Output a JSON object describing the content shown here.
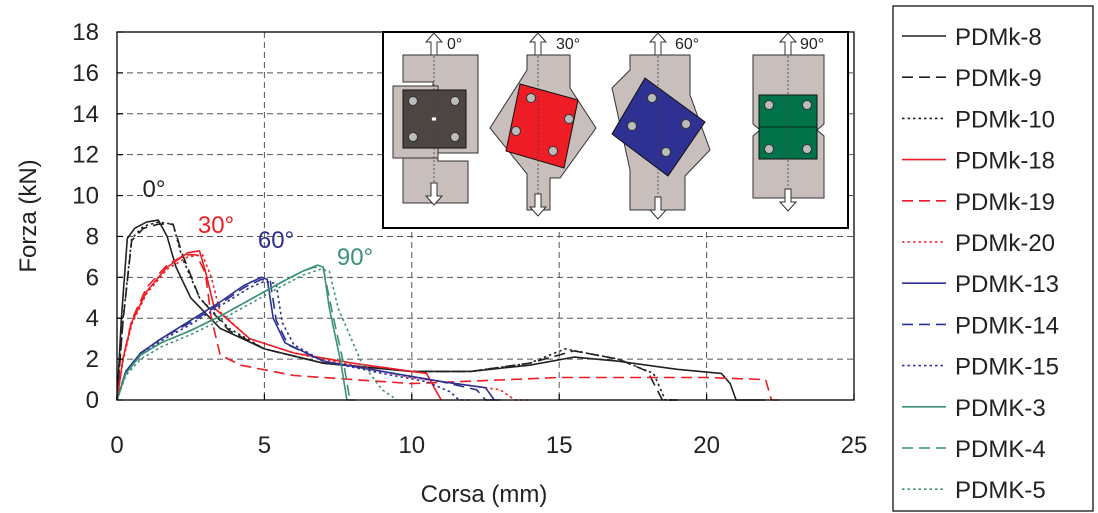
{
  "chart_data": {
    "type": "line",
    "xlabel": "Corsa (mm)",
    "ylabel": "Forza (kN)",
    "xlim": [
      0,
      25
    ],
    "ylim": [
      0,
      18
    ],
    "xticks": [
      0,
      5,
      10,
      15,
      20,
      25
    ],
    "yticks": [
      0,
      2,
      4,
      6,
      8,
      10,
      12,
      14,
      16,
      18
    ],
    "grid": true,
    "legend_position": "right-outside",
    "annotations": [
      {
        "text": "0°",
        "color": "#222222"
      },
      {
        "text": "30°",
        "color": "#ee1c24"
      },
      {
        "text": "60°",
        "color": "#2e3192"
      },
      {
        "text": "90°",
        "color": "#3a9177"
      }
    ],
    "inset": {
      "labels": [
        "0°",
        "30°",
        "60°",
        "90°"
      ],
      "colors": [
        "#4d4541",
        "#ee1c24",
        "#2e3192",
        "#00734a"
      ]
    },
    "series": [
      {
        "name": "PDMk-8",
        "color": "#222222",
        "dash": "solid",
        "x": [
          0,
          0.15,
          0.35,
          0.6,
          1.0,
          1.4,
          1.7,
          2.0,
          2.5,
          3.5,
          5,
          7,
          10,
          12,
          14,
          15.5,
          17,
          19,
          20.5,
          20.8,
          21,
          22
        ],
        "y": [
          0,
          4.0,
          7.9,
          8.4,
          8.7,
          8.8,
          8.0,
          6.5,
          5.0,
          3.5,
          2.5,
          1.8,
          1.4,
          1.4,
          1.7,
          2.1,
          1.9,
          1.5,
          1.3,
          0.8,
          0,
          0
        ]
      },
      {
        "name": "PDMk-9",
        "color": "#222222",
        "dash": "dashed",
        "x": [
          0,
          0.2,
          0.5,
          0.9,
          1.4,
          1.9,
          2.2,
          2.8,
          3.8,
          5,
          7,
          10,
          12,
          14,
          15.5,
          17,
          18.0,
          18.5,
          19
        ],
        "y": [
          0,
          3.8,
          7.8,
          8.4,
          8.6,
          8.6,
          7.2,
          5.0,
          3.4,
          2.5,
          1.8,
          1.4,
          1.4,
          1.8,
          2.4,
          2.0,
          1.4,
          0,
          0
        ]
      },
      {
        "name": "PDMk-10",
        "color": "#222222",
        "dash": "dotted",
        "x": [
          0,
          0.2,
          0.5,
          0.9,
          1.4,
          1.9,
          2.2,
          2.8,
          3.8,
          5,
          7,
          10,
          12,
          14,
          15.2,
          17,
          18.2,
          18.6,
          19
        ],
        "y": [
          0,
          3.9,
          7.9,
          8.5,
          8.7,
          8.6,
          7.0,
          5.0,
          3.5,
          2.5,
          1.8,
          1.4,
          1.4,
          1.8,
          2.5,
          2.0,
          1.3,
          0,
          0
        ]
      },
      {
        "name": "PDMk-18",
        "color": "#ee1c24",
        "dash": "solid",
        "x": [
          0,
          0.2,
          0.5,
          1.0,
          1.7,
          2.4,
          2.8,
          3.0,
          3.3,
          4.5,
          6,
          8,
          10,
          10.5,
          10.8,
          11
        ],
        "y": [
          0,
          2.0,
          3.8,
          5.3,
          6.5,
          7.2,
          7.3,
          6.3,
          4.5,
          3.0,
          2.3,
          1.8,
          1.4,
          1.3,
          0.5,
          0
        ]
      },
      {
        "name": "PDMk-19",
        "color": "#ee1c24",
        "dash": "dashed",
        "x": [
          0,
          0.2,
          0.5,
          1.0,
          1.7,
          2.3,
          2.7,
          3.0,
          3.2,
          3.5,
          4.2,
          6,
          10,
          15,
          20,
          22.0,
          22.2,
          22.5
        ],
        "y": [
          0,
          2.0,
          3.9,
          5.5,
          6.6,
          7.1,
          7.1,
          6.2,
          4.0,
          2.2,
          1.7,
          1.2,
          0.8,
          1.1,
          1.1,
          1.0,
          0,
          0
        ]
      },
      {
        "name": "PDMk-20",
        "color": "#ee1c24",
        "dash": "dotted",
        "x": [
          0,
          0.2,
          0.5,
          1.0,
          1.7,
          2.4,
          2.9,
          3.2,
          3.5,
          4.5,
          6,
          8,
          10,
          12,
          13,
          13.5,
          14
        ],
        "y": [
          0,
          1.9,
          3.7,
          5.2,
          6.4,
          7.0,
          7.1,
          6.0,
          4.3,
          3.0,
          2.3,
          1.7,
          1.1,
          0.7,
          0.5,
          0,
          0
        ]
      },
      {
        "name": "PDMK-13",
        "color": "#2e3192",
        "dash": "solid",
        "x": [
          0,
          0.3,
          0.8,
          1.5,
          2.5,
          3.5,
          4.3,
          4.9,
          5.1,
          5.3,
          5.7,
          7,
          9,
          11,
          12.5,
          12.8,
          13
        ],
        "y": [
          0,
          1.4,
          2.3,
          3.0,
          3.9,
          4.8,
          5.6,
          6.0,
          5.9,
          4.0,
          2.8,
          1.9,
          1.4,
          0.9,
          0.6,
          0,
          0
        ]
      },
      {
        "name": "PDMK-14",
        "color": "#2e3192",
        "dash": "dashed",
        "x": [
          0,
          0.3,
          0.8,
          1.5,
          2.5,
          3.5,
          4.3,
          4.9,
          5.2,
          5.4,
          5.8,
          7,
          9,
          11,
          12.2,
          12.5,
          13
        ],
        "y": [
          0,
          1.4,
          2.3,
          3.0,
          3.8,
          4.7,
          5.5,
          5.9,
          5.8,
          3.9,
          2.7,
          1.9,
          1.4,
          0.9,
          0.5,
          0,
          0
        ]
      },
      {
        "name": "PDMK-15",
        "color": "#2e3192",
        "dash": "dotted",
        "x": [
          0,
          0.3,
          0.8,
          1.5,
          2.5,
          3.5,
          4.5,
          5.0,
          5.4,
          5.6,
          6.0,
          7,
          9,
          10.5,
          11.3,
          11.6,
          12
        ],
        "y": [
          0,
          1.3,
          2.2,
          2.9,
          3.7,
          4.6,
          5.5,
          5.8,
          5.7,
          3.8,
          2.7,
          1.9,
          1.3,
          0.9,
          0.4,
          0,
          0
        ]
      },
      {
        "name": "PDMK-3",
        "color": "#3a9177",
        "dash": "solid",
        "x": [
          0,
          0.3,
          0.8,
          1.5,
          2.5,
          3.5,
          4.5,
          5.5,
          6.3,
          6.8,
          7.0,
          7.2,
          7.6,
          7.8,
          8.0
        ],
        "y": [
          0,
          1.3,
          2.2,
          2.8,
          3.4,
          4.1,
          4.9,
          5.7,
          6.3,
          6.6,
          6.5,
          4.5,
          1.8,
          0,
          0
        ]
      },
      {
        "name": "PDMK-4",
        "color": "#3a9177",
        "dash": "dashed",
        "x": [
          0,
          0.3,
          0.8,
          1.5,
          2.5,
          3.5,
          4.5,
          5.5,
          6.3,
          6.7,
          7.0,
          7.3,
          7.7,
          7.9,
          8.1
        ],
        "y": [
          0,
          1.3,
          2.2,
          2.8,
          3.4,
          4.1,
          4.9,
          5.7,
          6.3,
          6.5,
          6.4,
          4.3,
          1.7,
          0,
          0
        ]
      },
      {
        "name": "PDMK-5",
        "color": "#3a9177",
        "dash": "dotted",
        "x": [
          0,
          0.3,
          0.8,
          1.5,
          2.5,
          3.5,
          4.5,
          5.5,
          6.3,
          6.9,
          7.2,
          7.5,
          8.3,
          9.0,
          9.5
        ],
        "y": [
          0,
          1.2,
          2.0,
          2.6,
          3.2,
          3.9,
          4.7,
          5.5,
          6.1,
          6.4,
          6.3,
          4.5,
          1.8,
          0.5,
          0
        ]
      }
    ]
  }
}
